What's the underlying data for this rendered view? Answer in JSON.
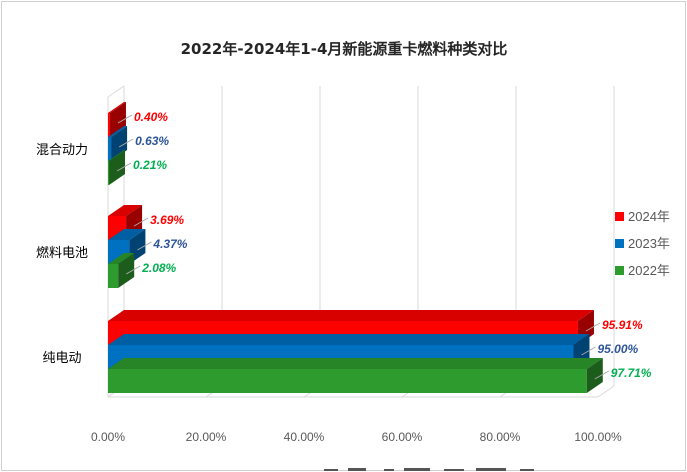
{
  "chart_data": {
    "type": "bar",
    "orientation": "horizontal",
    "style": "3d",
    "title": "2022年-2024年1-4月新能源重卡燃料种类对比",
    "categories": [
      "混合动力",
      "燃料电池",
      "纯电动"
    ],
    "series": [
      {
        "name": "2024年",
        "color": "#ff0000",
        "label_color": "#ff0000",
        "values": [
          0.4,
          3.69,
          95.91
        ],
        "labels": [
          "0.40%",
          "3.69%",
          "95.91%"
        ]
      },
      {
        "name": "2023年",
        "color": "#0070c0",
        "label_color": "#2e5597",
        "values": [
          0.63,
          4.37,
          95.0
        ],
        "labels": [
          "0.63%",
          "4.37%",
          "95.00%"
        ]
      },
      {
        "name": "2022年",
        "color": "#2e9b2e",
        "label_color": "#00b050",
        "values": [
          0.21,
          2.08,
          97.71
        ],
        "labels": [
          "0.21%",
          "2.08%",
          "97.71%"
        ]
      }
    ],
    "xlim": [
      0,
      100
    ],
    "xticks": [
      0,
      20,
      40,
      60,
      80,
      100
    ],
    "xtick_labels": [
      "0.00%",
      "20.00%",
      "40.00%",
      "60.00%",
      "80.00%",
      "100.00%"
    ],
    "grid": true,
    "legend_position": "right"
  }
}
